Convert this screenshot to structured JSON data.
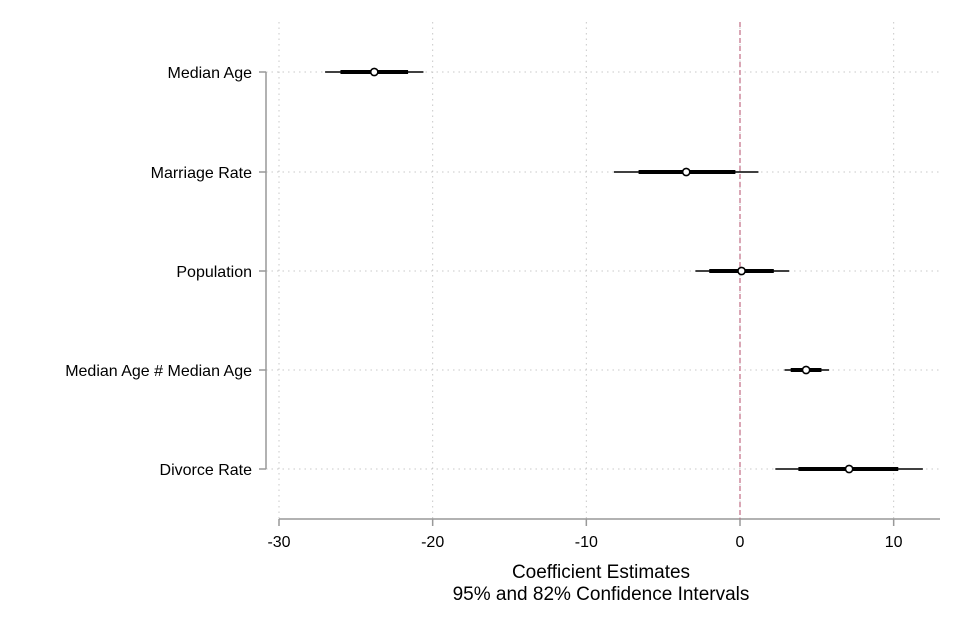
{
  "chart_data": {
    "type": "coefficient-plot",
    "title": "",
    "xlabel": "Coefficient Estimates",
    "xlabel_line2": "95% and 82% Confidence Intervals",
    "ylabel": "",
    "xlim": [
      -30,
      13
    ],
    "xticks": [
      -30,
      -20,
      -10,
      0,
      10
    ],
    "reference_line": 0,
    "reference_line_style": "dashed",
    "reference_line_color": "#c06c84",
    "grid": true,
    "categories": [
      "Median Age",
      "Marriage Rate",
      "Population",
      "Median Age # Median Age",
      "Divorce Rate"
    ],
    "series": [
      {
        "estimates": [
          -23.8,
          -3.5,
          0.1,
          4.3,
          7.1
        ],
        "ci95": [
          [
            -27.0,
            -20.6
          ],
          [
            -8.2,
            1.2
          ],
          [
            -2.9,
            3.2
          ],
          [
            2.9,
            5.8
          ],
          [
            2.3,
            11.9
          ]
        ],
        "ci82": [
          [
            -26.0,
            -21.6
          ],
          [
            -6.6,
            -0.3
          ],
          [
            -2.0,
            2.2
          ],
          [
            3.3,
            5.3
          ],
          [
            3.8,
            10.3
          ]
        ]
      }
    ]
  }
}
